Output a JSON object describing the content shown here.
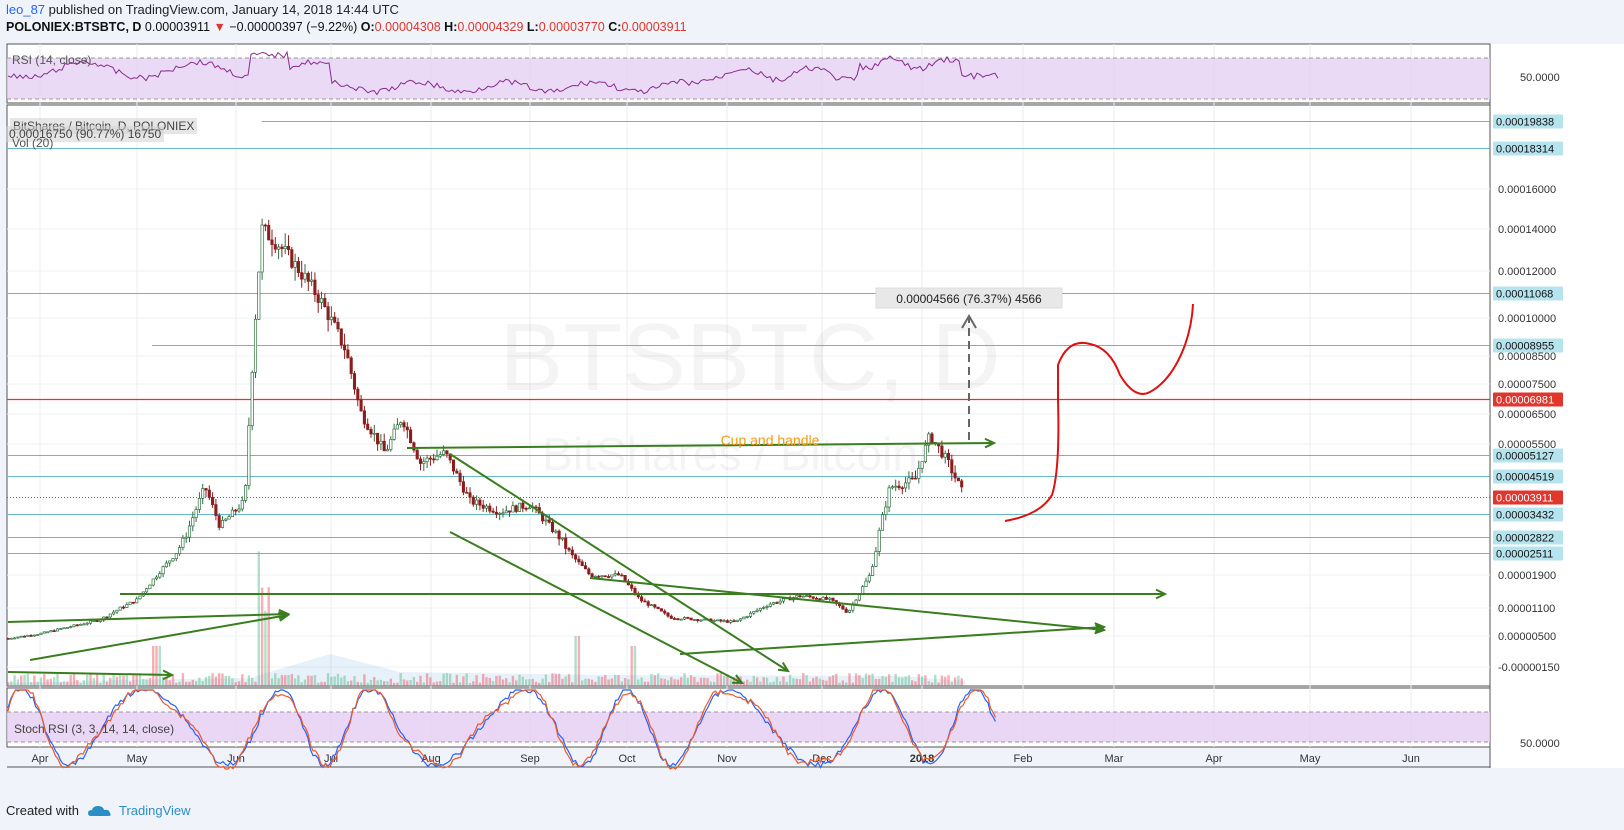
{
  "header": {
    "user": "leo_87",
    "published": " published on TradingView.com, January 14, 2018 14:44 UTC",
    "symbol": "POLONIEX:BTSBTC, D",
    "price": "0.00003911",
    "change_arrow": "▼",
    "change": "−0.00000397 (−9.22%)",
    "o_label": "O:",
    "o": "0.00004308",
    "h_label": "H:",
    "h": "0.00004329",
    "l_label": "L:",
    "l": "0.00003770",
    "c_label": "C:",
    "c": "0.00003911"
  },
  "rsi_pane": {
    "legend": "RSI (14, close)",
    "axis_label": "50.0000"
  },
  "main_pane": {
    "legend_title": "BitShares / Bitcoin, D, POLONIEX",
    "legend_vol_value": "0.00016750 (90.77%) 16750",
    "legend_vol": "Vol (20)",
    "watermark_symbol": "BTSBTC, D",
    "watermark_name": "BitShares / Bitcoin",
    "annotation_pattern": "Cup and handle",
    "measure_label": "0.00004566 (76.37%) 4566"
  },
  "stoch_pane": {
    "legend": "Stoch RSI (3, 3, 14, 14, close)",
    "axis_label": "50.0000"
  },
  "footer": {
    "created_with": "Created with",
    "brand": "TradingView"
  },
  "colors": {
    "up_candle": "#53b987",
    "down_candle": "#eb4d5c",
    "hline_teal": "#66b8c8",
    "hline_red": "#e0362e",
    "trendline": "#3a7d1e",
    "drawing": "#e01010",
    "annotation": "#f39c12",
    "rsi_line": "#8b2a8f",
    "rsi_band": "#e3cdf2",
    "stoch_k": "#2962ff",
    "stoch_d": "#ef5a26",
    "price_badge_teal": "#b6e4ee",
    "price_badge_red": "#e0362e"
  },
  "chart_data": {
    "type": "candlestick",
    "title": "POLONIEX:BTSBTC, D",
    "x_ticks": [
      "Apr",
      "May",
      "Jun",
      "Jul",
      "Aug",
      "Sep",
      "Oct",
      "Nov",
      "Dec",
      "2018",
      "Feb",
      "Mar",
      "Apr",
      "May",
      "Jun"
    ],
    "y_ticks": [
      "0.00016000",
      "0.00014000",
      "0.00012000",
      "0.00010000",
      "0.00008500",
      "0.00007500",
      "0.00006500",
      "0.00005500",
      "0.00001900",
      "0.00001100",
      "0.00000500",
      "-0.00000150"
    ],
    "horizontal_levels": [
      {
        "value": "0.00019838",
        "color": "teal"
      },
      {
        "value": "0.00018314",
        "color": "teal"
      },
      {
        "value": "0.00011068",
        "color": "teal"
      },
      {
        "value": "0.00008955",
        "color": "teal"
      },
      {
        "value": "0.00006981",
        "color": "red"
      },
      {
        "value": "0.00005127",
        "color": "teal"
      },
      {
        "value": "0.00004519",
        "color": "teal"
      },
      {
        "value": "0.00003911",
        "color": "red-dotted"
      },
      {
        "value": "0.00003432",
        "color": "teal"
      },
      {
        "value": "0.00002822",
        "color": "teal"
      },
      {
        "value": "0.00002511",
        "color": "teal"
      }
    ],
    "last_close": 3.911e-05,
    "series": [
      {
        "name": "BTSBTC",
        "approx_close_by_month": {
          "Apr": 4.5e-06,
          "May": 1.2e-05,
          "Jun": 0.00014,
          "Jul": 8.5e-05,
          "Aug": 5e-05,
          "Sep": 3.5e-05,
          "Oct": 1.8e-05,
          "Nov": 1e-05,
          "Dec": 1.5e-05,
          "2018": 5.8e-05
        }
      }
    ],
    "rsi_level": 50,
    "stoch_level": 50
  }
}
